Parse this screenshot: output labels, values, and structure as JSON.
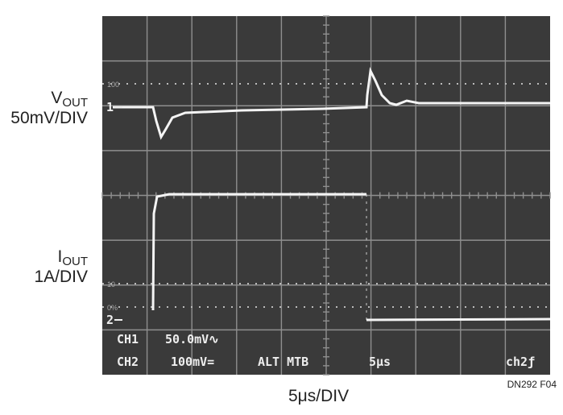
{
  "labels": {
    "vout": {
      "main": "V",
      "sub": "OUT"
    },
    "vout_scale": "50mV/DIV",
    "iout": {
      "main": "I",
      "sub": "OUT"
    },
    "iout_scale": "1A/DIV",
    "x_scale": "5μs/DIV",
    "figure_id": "DN292 F04"
  },
  "screen": {
    "markers": {
      "ch1": "1",
      "ch2": "2",
      "top_ref": "100",
      "mid_ref": "10",
      "low_ref": "0%"
    },
    "readout": [
      [
        "CH1",
        "50.0mV∿"
      ],
      [
        "CH2",
        "100mV=",
        "ALT MTB",
        "5μs",
        "ch2ƒ"
      ]
    ]
  }
}
